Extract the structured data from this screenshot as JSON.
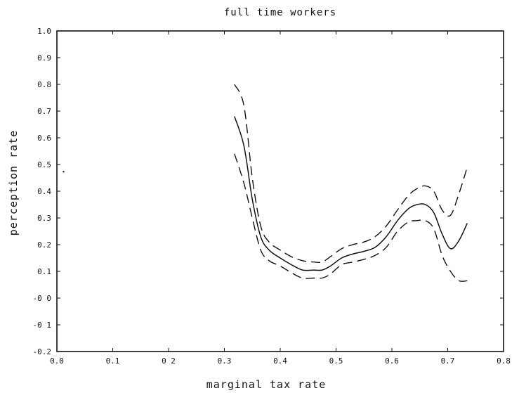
{
  "chart_data": {
    "type": "line",
    "title": "full time workers",
    "xlabel": "marginal tax rate",
    "ylabel": "perception rate",
    "xlim": [
      0.0,
      0.8
    ],
    "ylim": [
      -0.2,
      1.0
    ],
    "grid": false,
    "x_ticks": [
      {
        "value": 0.0,
        "label": "0.0"
      },
      {
        "value": 0.1,
        "label": "0.1"
      },
      {
        "value": 0.2,
        "label": "0 2"
      },
      {
        "value": 0.3,
        "label": "0.3"
      },
      {
        "value": 0.4,
        "label": "0.4"
      },
      {
        "value": 0.5,
        "label": "0.5"
      },
      {
        "value": 0.6,
        "label": "0.6"
      },
      {
        "value": 0.7,
        "label": "0.7"
      },
      {
        "value": 0.8,
        "label": "0.8"
      }
    ],
    "y_ticks": [
      {
        "value": 1.0,
        "label": "1.0"
      },
      {
        "value": 0.9,
        "label": "0.9"
      },
      {
        "value": 0.8,
        "label": "0.8"
      },
      {
        "value": 0.7,
        "label": "0.7"
      },
      {
        "value": 0.6,
        "label": "0.6"
      },
      {
        "value": 0.5,
        "label": "0.5"
      },
      {
        "value": 0.4,
        "label": "0.4"
      },
      {
        "value": 0.3,
        "label": "0.3"
      },
      {
        "value": 0.2,
        "label": "0.2"
      },
      {
        "value": 0.1,
        "label": "0.1"
      },
      {
        "value": 0.0,
        "label": "-0 0"
      },
      {
        "value": -0.1,
        "label": "-0 1"
      },
      {
        "value": -0.2,
        "label": "-0.2"
      }
    ],
    "series": [
      {
        "style": "solid",
        "x": [
          0.318,
          0.335,
          0.35,
          0.365,
          0.38,
          0.4,
          0.42,
          0.44,
          0.46,
          0.475,
          0.49,
          0.51,
          0.53,
          0.55,
          0.57,
          0.59,
          0.61,
          0.63,
          0.645,
          0.66,
          0.675,
          0.69,
          0.705,
          0.72,
          0.735
        ],
        "y": [
          0.68,
          0.57,
          0.37,
          0.23,
          0.18,
          0.15,
          0.125,
          0.105,
          0.105,
          0.105,
          0.12,
          0.15,
          0.165,
          0.175,
          0.19,
          0.23,
          0.29,
          0.335,
          0.35,
          0.35,
          0.32,
          0.24,
          0.185,
          0.215,
          0.28
        ]
      },
      {
        "style": "dashed",
        "x": [
          0.318,
          0.335,
          0.35,
          0.365,
          0.38,
          0.4,
          0.42,
          0.44,
          0.46,
          0.475,
          0.49,
          0.51,
          0.53,
          0.55,
          0.57,
          0.59,
          0.61,
          0.63,
          0.645,
          0.66,
          0.675,
          0.69,
          0.705,
          0.72,
          0.735
        ],
        "y": [
          0.8,
          0.72,
          0.45,
          0.27,
          0.21,
          0.18,
          0.155,
          0.14,
          0.135,
          0.135,
          0.155,
          0.185,
          0.2,
          0.21,
          0.23,
          0.27,
          0.33,
          0.385,
          0.41,
          0.42,
          0.4,
          0.33,
          0.31,
          0.39,
          0.49
        ]
      },
      {
        "style": "dashed",
        "x": [
          0.318,
          0.335,
          0.35,
          0.365,
          0.38,
          0.4,
          0.42,
          0.44,
          0.46,
          0.475,
          0.49,
          0.51,
          0.53,
          0.55,
          0.57,
          0.59,
          0.61,
          0.63,
          0.645,
          0.66,
          0.675,
          0.69,
          0.705,
          0.72,
          0.735
        ],
        "y": [
          0.54,
          0.43,
          0.3,
          0.18,
          0.14,
          0.12,
          0.095,
          0.075,
          0.075,
          0.075,
          0.09,
          0.125,
          0.135,
          0.145,
          0.16,
          0.19,
          0.25,
          0.285,
          0.29,
          0.29,
          0.26,
          0.16,
          0.1,
          0.065,
          0.065
        ]
      }
    ],
    "stray_marks": [
      {
        "x": 0.012,
        "y": 0.473
      }
    ]
  }
}
